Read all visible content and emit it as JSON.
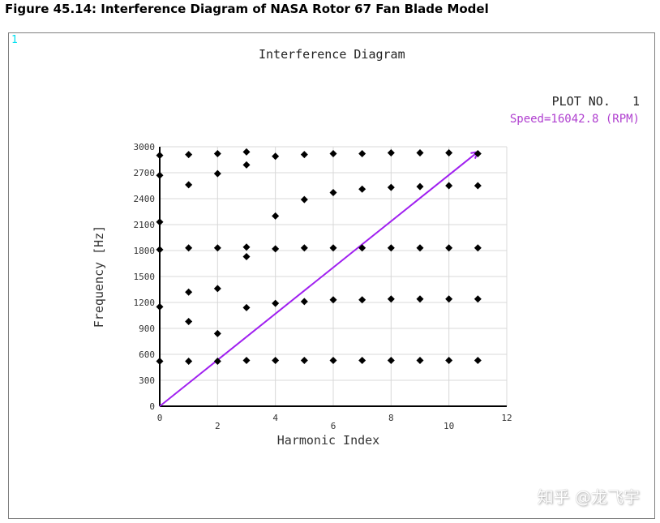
{
  "figure": {
    "caption": "Figure 45.14: Interference Diagram of NASA Rotor 67 Fan Blade Model",
    "panel_index": "1",
    "plot_no_label": "PLOT NO.   1",
    "watermark": "知乎 @龙飞宇"
  },
  "colors": {
    "marker": "#000000",
    "speed_line": "#a020f0",
    "speed_text": "#b040d0",
    "grid": "#d8d8d8",
    "panel_index": "#00e0f0"
  },
  "chart_data": {
    "type": "scatter",
    "title": "Interference Diagram",
    "xlabel": "Harmonic Index",
    "ylabel": "Frequency [Hz]",
    "xlim": [
      0,
      12
    ],
    "ylim": [
      0,
      3000
    ],
    "x_ticks": [
      0,
      2,
      4,
      6,
      8,
      10,
      12
    ],
    "y_ticks": [
      0,
      300,
      600,
      900,
      1200,
      1500,
      1800,
      2100,
      2400,
      2700,
      3000
    ],
    "grid": true,
    "speed_line": {
      "label": "Speed=16042.8 (RPM)",
      "from": [
        0,
        0
      ],
      "to": [
        11,
        2941
      ]
    },
    "points": [
      [
        0,
        520
      ],
      [
        0,
        1150
      ],
      [
        0,
        1810
      ],
      [
        0,
        2130
      ],
      [
        0,
        2670
      ],
      [
        0,
        2900
      ],
      [
        1,
        520
      ],
      [
        1,
        980
      ],
      [
        1,
        1320
      ],
      [
        1,
        1830
      ],
      [
        1,
        2560
      ],
      [
        1,
        2910
      ],
      [
        2,
        520
      ],
      [
        2,
        840
      ],
      [
        2,
        1360
      ],
      [
        2,
        1830
      ],
      [
        2,
        2690
      ],
      [
        2,
        2920
      ],
      [
        3,
        530
      ],
      [
        3,
        1140
      ],
      [
        3,
        1730
      ],
      [
        3,
        1840
      ],
      [
        3,
        2790
      ],
      [
        3,
        2940
      ],
      [
        4,
        530
      ],
      [
        4,
        1190
      ],
      [
        4,
        1820
      ],
      [
        4,
        2200
      ],
      [
        4,
        2890
      ],
      [
        5,
        530
      ],
      [
        5,
        1210
      ],
      [
        5,
        1830
      ],
      [
        5,
        2390
      ],
      [
        5,
        2910
      ],
      [
        6,
        530
      ],
      [
        6,
        1230
      ],
      [
        6,
        1830
      ],
      [
        6,
        2470
      ],
      [
        6,
        2920
      ],
      [
        7,
        530
      ],
      [
        7,
        1230
      ],
      [
        7,
        1830
      ],
      [
        7,
        2510
      ],
      [
        7,
        2920
      ],
      [
        8,
        530
      ],
      [
        8,
        1240
      ],
      [
        8,
        1830
      ],
      [
        8,
        2530
      ],
      [
        8,
        2930
      ],
      [
        9,
        530
      ],
      [
        9,
        1240
      ],
      [
        9,
        1830
      ],
      [
        9,
        2540
      ],
      [
        9,
        2930
      ],
      [
        10,
        530
      ],
      [
        10,
        1240
      ],
      [
        10,
        1830
      ],
      [
        10,
        2550
      ],
      [
        10,
        2930
      ],
      [
        11,
        530
      ],
      [
        11,
        1240
      ],
      [
        11,
        1830
      ],
      [
        11,
        2550
      ],
      [
        11,
        2920
      ]
    ]
  }
}
